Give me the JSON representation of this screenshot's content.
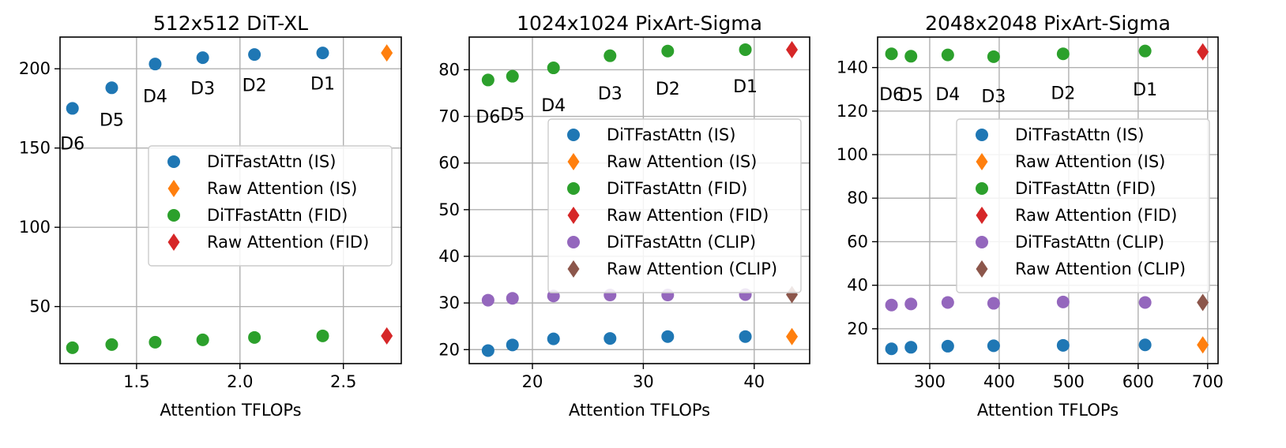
{
  "chart_data": [
    {
      "type": "scatter",
      "title": "512x512 DiT-XL",
      "xlabel": "Attention TFLOPs",
      "ylabel": "",
      "xlim": [
        1.13,
        2.78
      ],
      "ylim": [
        14,
        220
      ],
      "xticks": [
        1.5,
        2.0,
        2.5
      ],
      "xtick_labels": [
        "1.5",
        "2.0",
        "2.5"
      ],
      "yticks": [
        50,
        100,
        150,
        200
      ],
      "ytick_labels": [
        "50",
        "100",
        "150",
        "200"
      ],
      "grid": true,
      "legend_position": "center-right",
      "series": [
        {
          "name": "DiTFastAttn (IS)",
          "marker": "circle",
          "color": "#1f77b4",
          "x": [
            1.19,
            1.38,
            1.59,
            1.82,
            2.07,
            2.4
          ],
          "y": [
            175,
            188,
            203,
            207,
            209,
            210
          ]
        },
        {
          "name": "Raw Attention (IS)",
          "marker": "diamond",
          "color": "#ff7f0e",
          "x": [
            2.71
          ],
          "y": [
            210
          ]
        },
        {
          "name": "DiTFastAttn (FID)",
          "marker": "circle",
          "color": "#2ca02c",
          "x": [
            1.19,
            1.38,
            1.59,
            1.82,
            2.07,
            2.4
          ],
          "y": [
            24,
            26,
            27.5,
            29,
            30.5,
            31.5
          ]
        },
        {
          "name": "Raw Attention (FID)",
          "marker": "diamond",
          "color": "#d62728",
          "x": [
            2.71
          ],
          "y": [
            31.5
          ]
        }
      ],
      "annotations": [
        {
          "text": "D6",
          "x": 1.19,
          "y": 153
        },
        {
          "text": "D5",
          "x": 1.38,
          "y": 168
        },
        {
          "text": "D4",
          "x": 1.59,
          "y": 183
        },
        {
          "text": "D3",
          "x": 1.82,
          "y": 188
        },
        {
          "text": "D2",
          "x": 2.07,
          "y": 190
        },
        {
          "text": "D1",
          "x": 2.4,
          "y": 191
        }
      ]
    },
    {
      "type": "scatter",
      "title": "1024x1024 PixArt-Sigma",
      "xlabel": "Attention TFLOPs",
      "ylabel": "",
      "xlim": [
        14.3,
        45.0
      ],
      "ylim": [
        17,
        87
      ],
      "xticks": [
        20,
        30,
        40
      ],
      "xtick_labels": [
        "20",
        "30",
        "40"
      ],
      "yticks": [
        20,
        30,
        40,
        50,
        60,
        70,
        80
      ],
      "ytick_labels": [
        "20",
        "30",
        "40",
        "50",
        "60",
        "70",
        "80"
      ],
      "grid": true,
      "legend_position": "center-right",
      "series": [
        {
          "name": "DiTFastAttn (IS)",
          "marker": "circle",
          "color": "#1f77b4",
          "x": [
            16,
            18.2,
            21.9,
            27,
            32.2,
            39.2
          ],
          "y": [
            19.8,
            21,
            22.3,
            22.4,
            22.8,
            22.8
          ]
        },
        {
          "name": "Raw Attention (IS)",
          "marker": "diamond",
          "color": "#ff7f0e",
          "x": [
            43.4
          ],
          "y": [
            22.8
          ]
        },
        {
          "name": "DiTFastAttn (FID)",
          "marker": "circle",
          "color": "#2ca02c",
          "x": [
            16,
            18.2,
            21.9,
            27,
            32.2,
            39.2
          ],
          "y": [
            77.8,
            78.6,
            80.4,
            83,
            84,
            84.3
          ]
        },
        {
          "name": "Raw Attention (FID)",
          "marker": "diamond",
          "color": "#d62728",
          "x": [
            43.4
          ],
          "y": [
            84.3
          ]
        },
        {
          "name": "DiTFastAttn (CLIP)",
          "marker": "circle",
          "color": "#9467bd",
          "x": [
            16,
            18.2,
            21.9,
            27,
            32.2,
            39.2
          ],
          "y": [
            30.6,
            31,
            31.5,
            31.7,
            31.7,
            31.8
          ]
        },
        {
          "name": "Raw Attention (CLIP)",
          "marker": "diamond",
          "color": "#8c564b",
          "x": [
            43.4
          ],
          "y": [
            31.8
          ]
        }
      ],
      "annotations": [
        {
          "text": "D6",
          "x": 16,
          "y": 70
        },
        {
          "text": "D5",
          "x": 18.2,
          "y": 70.5
        },
        {
          "text": "D4",
          "x": 21.9,
          "y": 72.5
        },
        {
          "text": "D3",
          "x": 27,
          "y": 75
        },
        {
          "text": "D2",
          "x": 32.2,
          "y": 76
        },
        {
          "text": "D1",
          "x": 39.2,
          "y": 76.5
        }
      ]
    },
    {
      "type": "scatter",
      "title": "2048x2048 PixArt-Sigma",
      "xlabel": "Attention TFLOPs",
      "ylabel": "",
      "xlim": [
        225,
        715
      ],
      "ylim": [
        4,
        154
      ],
      "xticks": [
        300,
        400,
        500,
        600,
        700
      ],
      "xtick_labels": [
        "300",
        "400",
        "500",
        "600",
        "700"
      ],
      "yticks": [
        20,
        40,
        60,
        80,
        100,
        120,
        140
      ],
      "ytick_labels": [
        "20",
        "40",
        "60",
        "80",
        "100",
        "120",
        "140"
      ],
      "grid": true,
      "legend_position": "center-right",
      "series": [
        {
          "name": "DiTFastAttn (IS)",
          "marker": "circle",
          "color": "#1f77b4",
          "x": [
            245,
            273,
            326,
            392,
            492,
            610
          ],
          "y": [
            10.8,
            11.5,
            12,
            12.2,
            12.4,
            12.6
          ]
        },
        {
          "name": "Raw Attention (IS)",
          "marker": "diamond",
          "color": "#ff7f0e",
          "x": [
            693
          ],
          "y": [
            12.6
          ]
        },
        {
          "name": "DiTFastAttn (FID)",
          "marker": "circle",
          "color": "#2ca02c",
          "x": [
            245,
            273,
            326,
            392,
            492,
            610
          ],
          "y": [
            146.3,
            145.2,
            145.8,
            145,
            146.3,
            147.6
          ]
        },
        {
          "name": "Raw Attention (FID)",
          "marker": "diamond",
          "color": "#d62728",
          "x": [
            693
          ],
          "y": [
            147.2
          ]
        },
        {
          "name": "DiTFastAttn (CLIP)",
          "marker": "circle",
          "color": "#9467bd",
          "x": [
            245,
            273,
            326,
            392,
            492,
            610
          ],
          "y": [
            30.9,
            31.4,
            32.1,
            31.7,
            32.3,
            32.1
          ]
        },
        {
          "name": "Raw Attention (CLIP)",
          "marker": "diamond",
          "color": "#8c564b",
          "x": [
            693
          ],
          "y": [
            32.1
          ]
        }
      ],
      "annotations": [
        {
          "text": "D6",
          "x": 245,
          "y": 128
        },
        {
          "text": "D5",
          "x": 273,
          "y": 127.5
        },
        {
          "text": "D4",
          "x": 326,
          "y": 128
        },
        {
          "text": "D3",
          "x": 392,
          "y": 127
        },
        {
          "text": "D2",
          "x": 492,
          "y": 128.5
        },
        {
          "text": "D1",
          "x": 610,
          "y": 130
        }
      ]
    }
  ]
}
